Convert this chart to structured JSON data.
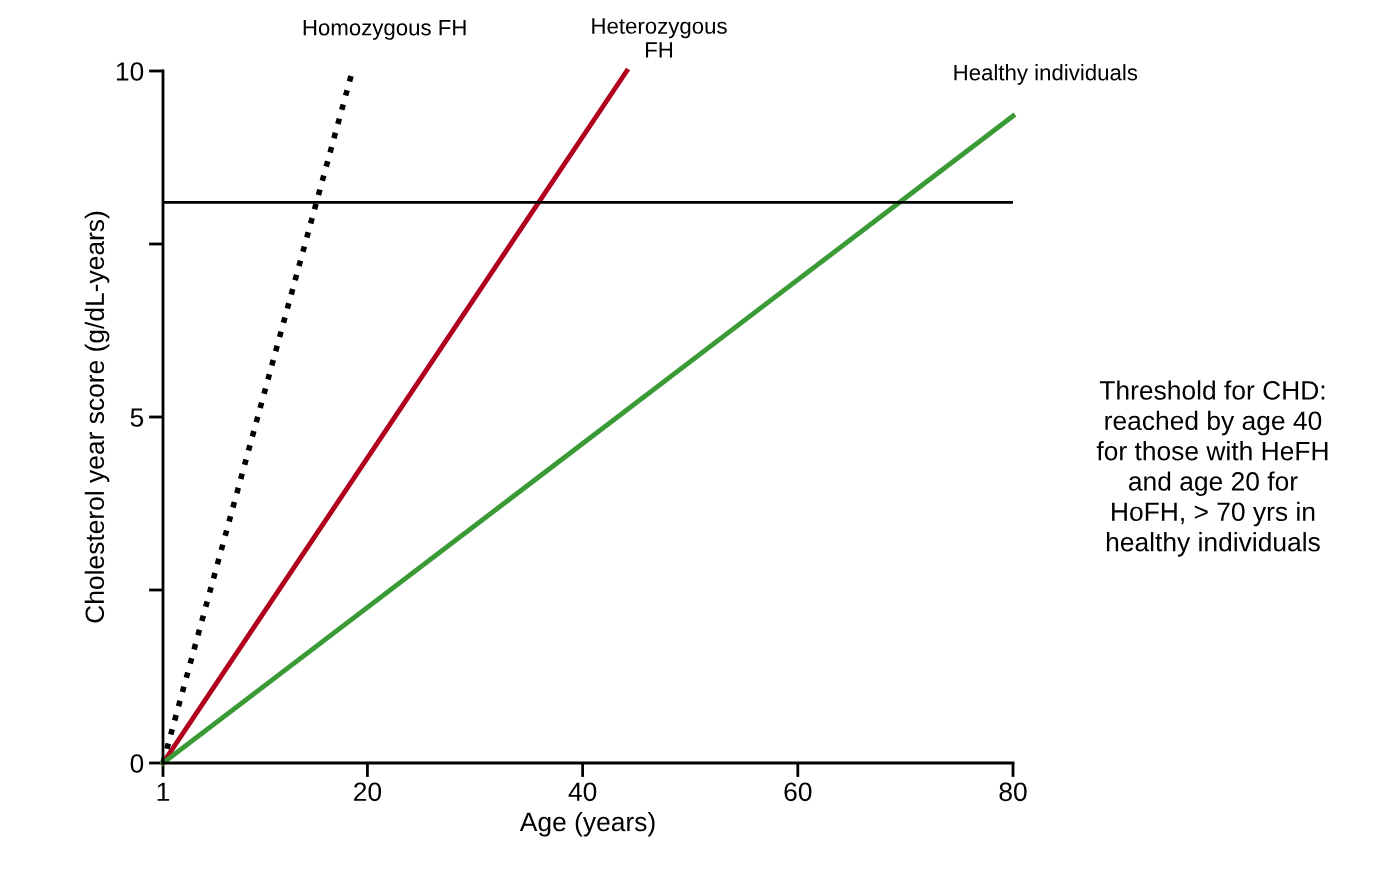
{
  "chart_data": {
    "type": "line",
    "xlabel": "Age (years)",
    "ylabel": "Cholesterol year score (g/dL-years)",
    "xlim": [
      1,
      80
    ],
    "xticks": [
      1,
      20,
      40,
      60,
      80
    ],
    "ylim": [
      0,
      10
    ],
    "yticks": [
      0,
      {
        "value": 2.5,
        "label": null
      },
      5,
      {
        "value": 7.5,
        "label": null
      },
      10
    ],
    "grid": false,
    "legend": false,
    "marker": "none",
    "series": [
      {
        "name": "Homozygous FH",
        "color": "#000000",
        "line_style": "dotted",
        "x": [
          1,
          18.6
        ],
        "values": [
          0,
          10
        ]
      },
      {
        "name": "Heterozygous\nFH",
        "color": "#b0001e",
        "line_style": "solid",
        "x": [
          1,
          44.1
        ],
        "values": [
          0,
          10
        ]
      },
      {
        "name": "Healthy individuals",
        "color": "#3a9a35",
        "line_style": "solid",
        "x": [
          1,
          80
        ],
        "values": [
          0,
          9.35
        ]
      }
    ],
    "ref_lines": [
      {
        "axis": "y",
        "value": 8.1,
        "color": "#000000",
        "line_style": "solid"
      }
    ],
    "annotations": [
      "Threshold for CHD:\nreached by age 40\nfor those with HeFH\nand age 20 for\nHoFH, > 70 yrs in\nhealthy individuals"
    ]
  }
}
